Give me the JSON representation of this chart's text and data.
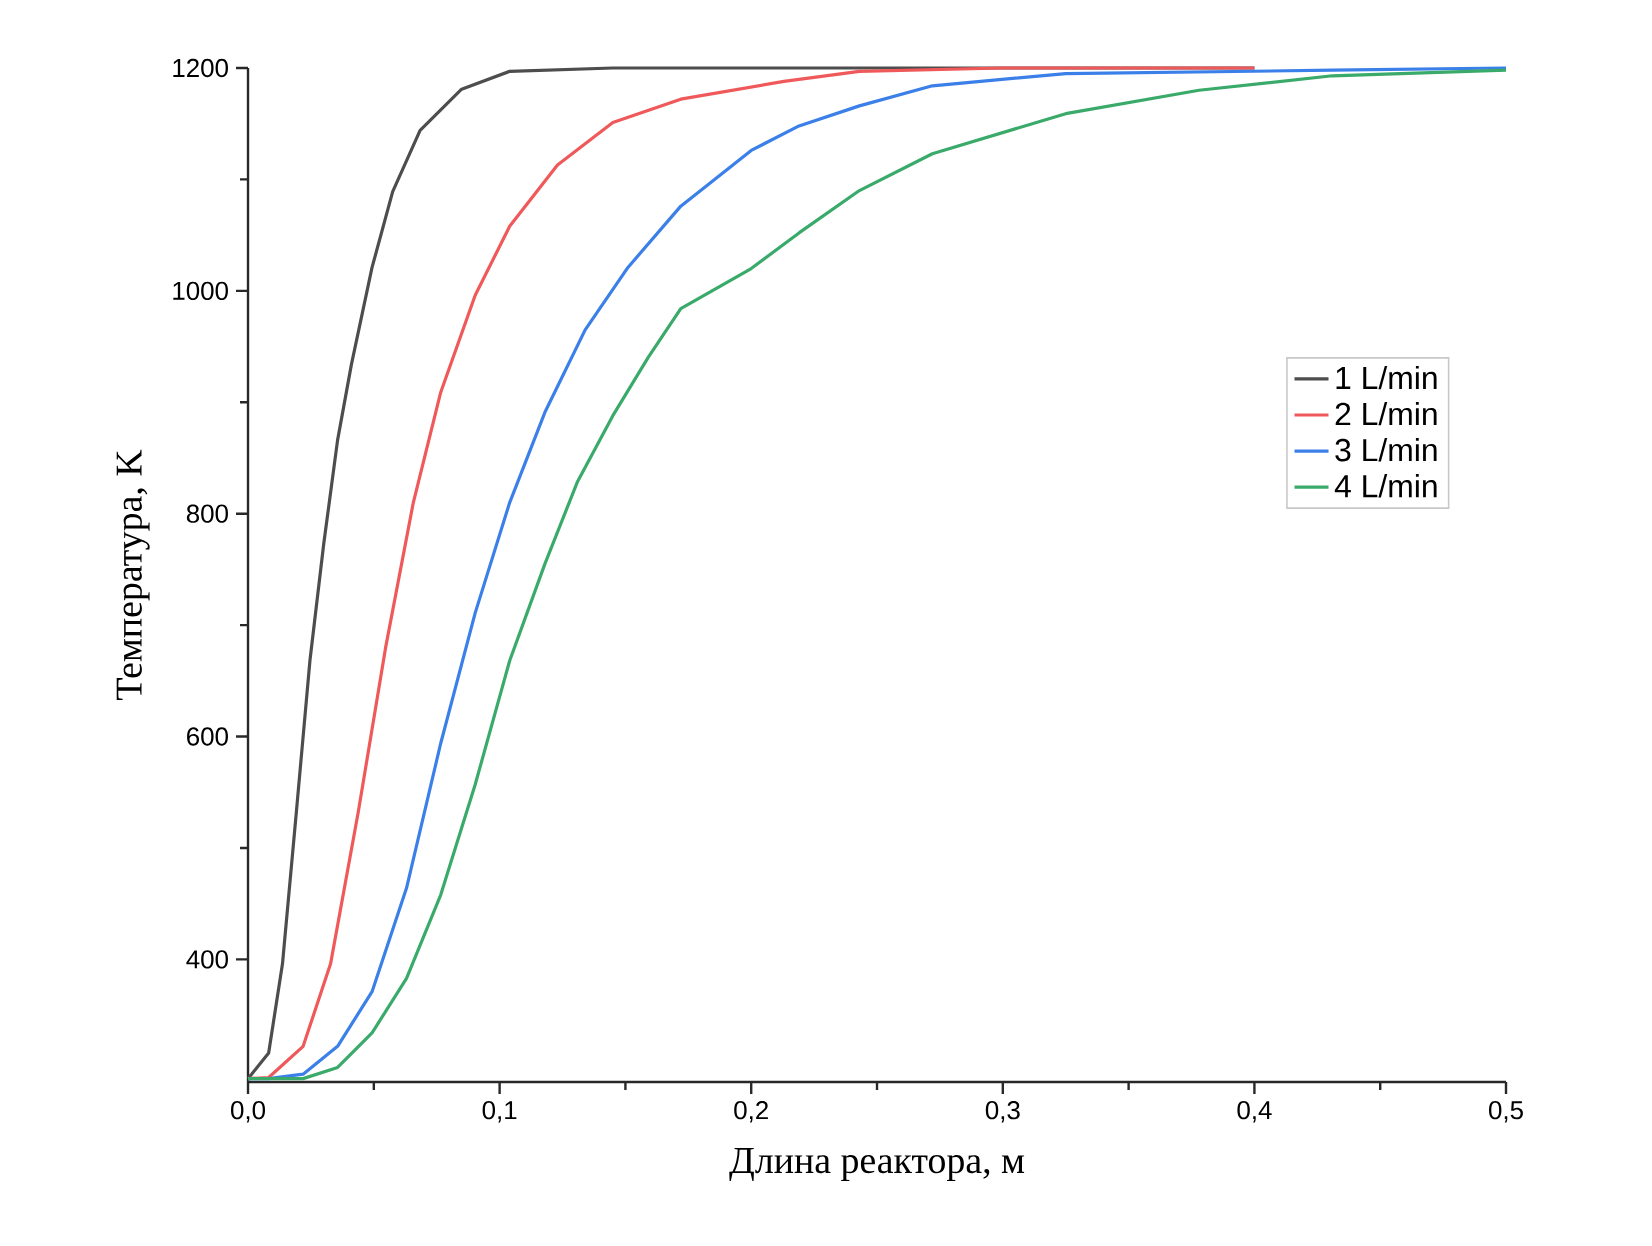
{
  "chart_data": {
    "type": "line",
    "xlabel": "Длина реактора, м",
    "ylabel": "Температура, K",
    "xlim": [
      0,
      0.5
    ],
    "ylim": [
      290,
      1200
    ],
    "xticks": [
      {
        "value": 0,
        "label": "0,0"
      },
      {
        "value": 0.1,
        "label": "0,1"
      },
      {
        "value": 0.2,
        "label": "0,2"
      },
      {
        "value": 0.3,
        "label": "0,3"
      },
      {
        "value": 0.4,
        "label": "0,4"
      },
      {
        "value": 0.5,
        "label": "0,5"
      }
    ],
    "yticks": [
      400,
      600,
      800,
      1000,
      1200
    ],
    "grid": false,
    "legend": "right",
    "marker": "none",
    "line_style": "solid",
    "series": [
      {
        "name": "1 L/min",
        "color": "#4d4d4d",
        "x": [
          0,
          0.0082,
          0.0137,
          0.0192,
          0.0246,
          0.0301,
          0.0356,
          0.0411,
          0.0493,
          0.0575,
          0.0684,
          0.0849,
          0.104,
          0.145,
          0.2,
          0.4
        ],
        "values": [
          293,
          316,
          396,
          532,
          668,
          773,
          866,
          934,
          1021,
          1089,
          1144,
          1181,
          1197,
          1200,
          1200,
          1200
        ]
      },
      {
        "name": "2 L/min",
        "color": "#f0595a",
        "x": [
          0,
          0.0082,
          0.0219,
          0.0328,
          0.0438,
          0.0547,
          0.0657,
          0.0766,
          0.0903,
          0.104,
          0.123,
          0.145,
          0.172,
          0.213,
          0.243,
          0.3,
          0.4
        ],
        "values": [
          293,
          294,
          322,
          396,
          532,
          680,
          810,
          909,
          996,
          1058,
          1113,
          1151,
          1172,
          1188,
          1197,
          1200,
          1200
        ]
      },
      {
        "name": "3 L/min",
        "color": "#3b7fe8",
        "x": [
          0,
          0.0082,
          0.0219,
          0.0356,
          0.0493,
          0.063,
          0.0766,
          0.0903,
          0.104,
          0.118,
          0.134,
          0.151,
          0.172,
          0.2,
          0.219,
          0.243,
          0.272,
          0.325,
          0.431,
          0.5
        ],
        "values": [
          293,
          293,
          297,
          322,
          371,
          464,
          594,
          711,
          810,
          891,
          965,
          1021,
          1076,
          1126,
          1148,
          1166,
          1184,
          1195,
          1198,
          1200
        ]
      },
      {
        "name": "4 L/min",
        "color": "#3aaa6a",
        "x": [
          0,
          0.0219,
          0.0356,
          0.0493,
          0.063,
          0.0766,
          0.0903,
          0.104,
          0.118,
          0.131,
          0.145,
          0.159,
          0.172,
          0.2,
          0.219,
          0.243,
          0.272,
          0.325,
          0.378,
          0.431,
          0.5
        ],
        "values": [
          293,
          293,
          303,
          334,
          383,
          458,
          557,
          668,
          755,
          829,
          888,
          940,
          984,
          1020,
          1052,
          1090,
          1123,
          1159,
          1180,
          1193,
          1198
        ]
      }
    ]
  }
}
